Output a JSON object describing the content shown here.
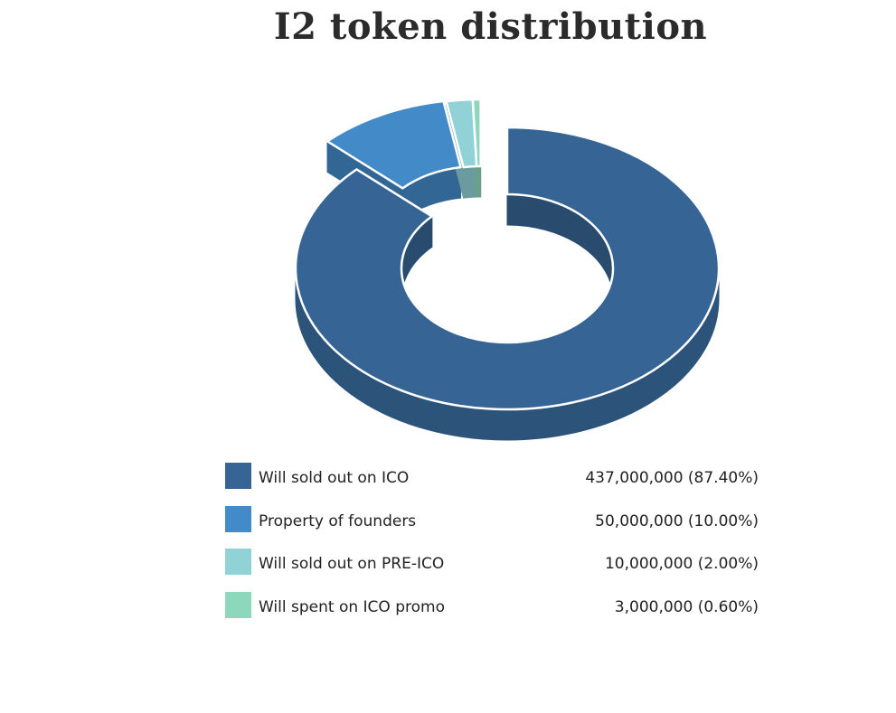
{
  "chart_data": {
    "type": "pie",
    "variant": "3d-donut",
    "title": "I2 token distribution",
    "categories": [
      "Will sold out on ICO",
      "Property of founders",
      "Will sold out on PRE-ICO",
      "Will spent on ICO promo"
    ],
    "values": [
      437000000,
      50000000,
      10000000,
      3000000
    ],
    "value_labels": [
      "437,000,000 (87.40%)",
      "50,000,000 (10.00%)",
      "10,000,000 (2.00%)",
      "3,000,000 (0.60%)"
    ],
    "colors": [
      "#366595",
      "#438ac8",
      "#90d2d6",
      "#8dd8bc"
    ],
    "legend_position": "bottom"
  }
}
